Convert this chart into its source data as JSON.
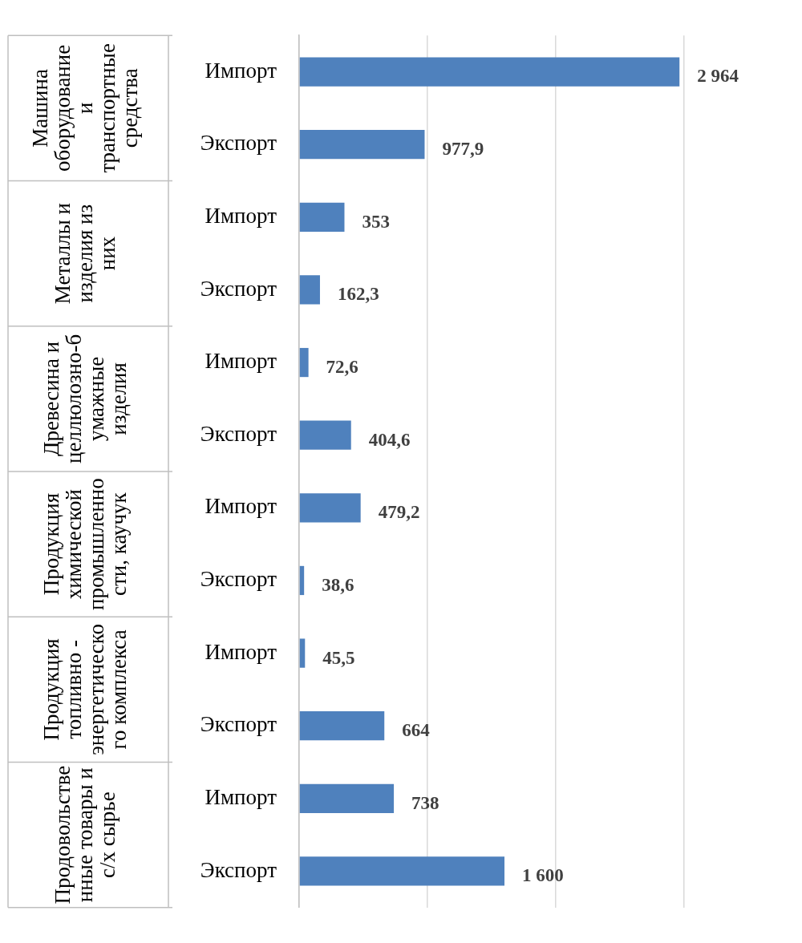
{
  "chart_data": {
    "type": "bar",
    "orientation": "horizontal",
    "categories": [
      "Импорт",
      "Экспорт",
      "Импорт",
      "Экспорт",
      "Импорт",
      "Экспорт",
      "Импорт",
      "Экспорт",
      "Импорт",
      "Экспорт",
      "Импорт",
      "Экспорт"
    ],
    "values": [
      2964,
      977.9,
      353,
      162.3,
      72.6,
      404.6,
      479.2,
      38.6,
      45.5,
      664,
      738,
      1600
    ],
    "value_labels": [
      "2 964",
      "977,9",
      "353",
      "162,3",
      "72,6",
      "404,6",
      "479,2",
      "38,6",
      "45,5",
      "664",
      "738",
      "1 600"
    ],
    "color": "#4f81bd",
    "xlim": [
      0,
      3000
    ],
    "xticks": [
      {
        "value": 0,
        "label": null
      },
      {
        "value": 1000,
        "label": null
      },
      {
        "value": 2000,
        "label": null
      },
      {
        "value": 3000,
        "label": null
      }
    ],
    "tick_labels": "y",
    "grid": "x",
    "legend": false,
    "annotations": [
      "Машина оборудование и транспортные средства",
      "Металлы и изделия из них",
      "Древесина и целлюлозно-бумажные изделия",
      "Продукция химической промышленности, каучук",
      "Продукция топливно - энергетического комплекса",
      "Продовольственные товары и с/х сырье"
    ]
  }
}
